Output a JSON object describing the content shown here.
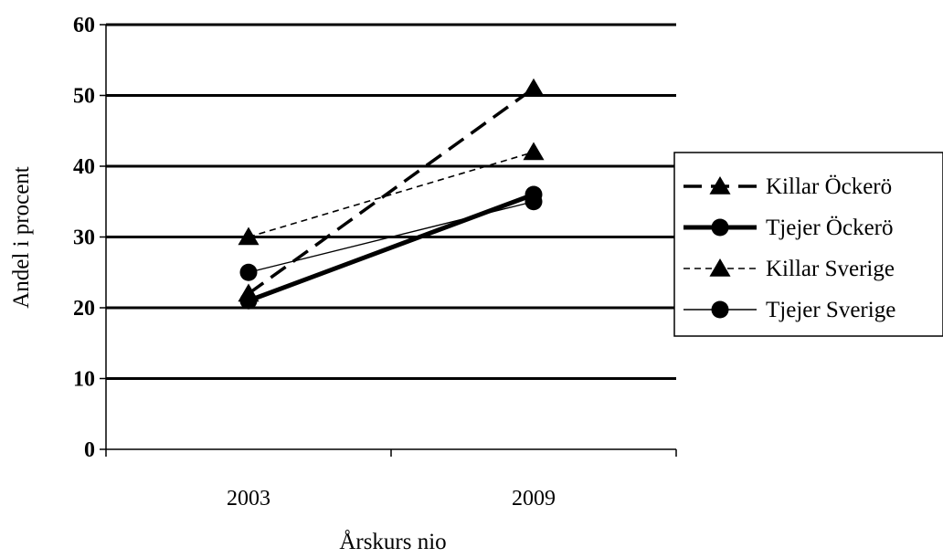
{
  "chart_data": {
    "type": "line",
    "title": "",
    "xlabel": "Årskurs nio",
    "ylabel": "Andel i procent",
    "categories": [
      "2003",
      "2009"
    ],
    "ylim": [
      0,
      60
    ],
    "yticks": [
      0,
      10,
      20,
      30,
      40,
      50,
      60
    ],
    "grid": true,
    "legend_position": "right",
    "series": [
      {
        "name": "Killar Öckerö",
        "values": [
          22,
          51
        ],
        "marker": "triangle",
        "line": "dashed-thick"
      },
      {
        "name": "Tjejer Öckerö",
        "values": [
          21,
          36
        ],
        "marker": "circle",
        "line": "solid-thick"
      },
      {
        "name": "Killar Sverige",
        "values": [
          30,
          42
        ],
        "marker": "triangle",
        "line": "dashed-thin"
      },
      {
        "name": "Tjejer Sverige",
        "values": [
          25,
          35
        ],
        "marker": "circle",
        "line": "solid-thin"
      }
    ]
  }
}
